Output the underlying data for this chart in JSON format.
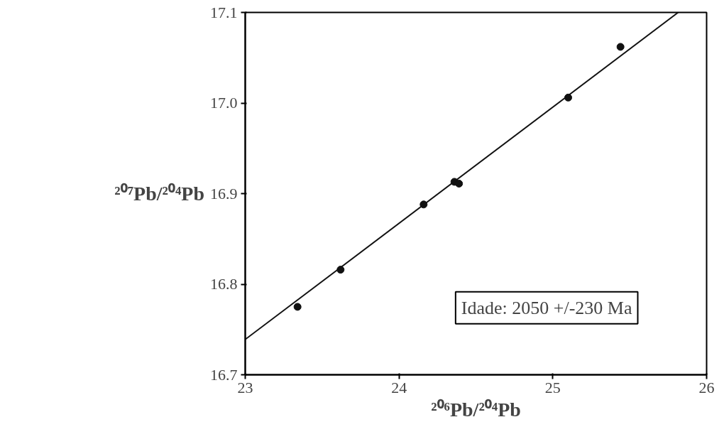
{
  "chart_data": {
    "type": "scatter",
    "xlabel": "²⁰⁶Pb/²⁰⁴Pb",
    "ylabel": "²⁰⁷Pb/²⁰⁴Pb",
    "xlim": [
      23,
      26
    ],
    "xticks": [
      23,
      24,
      25,
      26
    ],
    "ylim": [
      16.7,
      17.1
    ],
    "yticks": [
      16.7,
      16.8,
      16.9,
      {
        "value": 17.0,
        "label": "17.0"
      },
      17.1
    ],
    "grid": false,
    "series": [
      {
        "marker": "circle",
        "color": "#111111",
        "x": [
          23.34,
          23.62,
          24.16,
          24.36,
          24.39,
          25.1,
          25.44
        ],
        "values": [
          16.775,
          16.816,
          16.888,
          16.913,
          16.911,
          17.006,
          17.062
        ]
      },
      {
        "type": "line",
        "marker": "none",
        "color": "#111111",
        "x": [
          23.0,
          25.815
        ],
        "values": [
          16.739,
          17.1
        ]
      }
    ],
    "annotations": [
      "Idade: 2050 +/-230 Ma"
    ]
  }
}
